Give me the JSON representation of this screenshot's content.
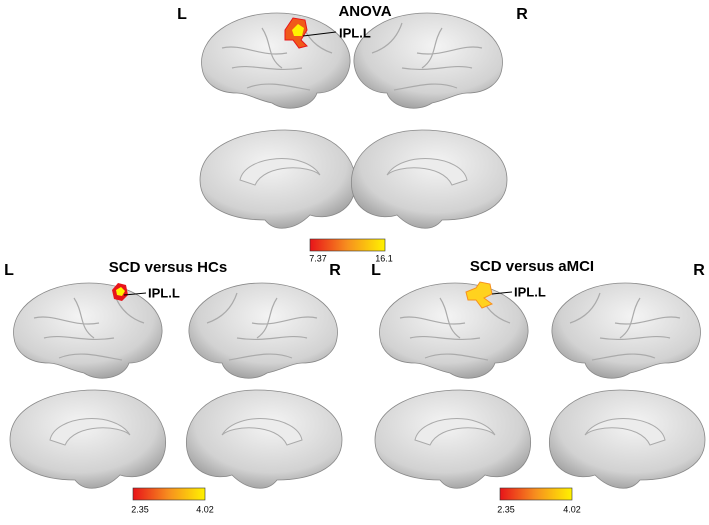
{
  "panels": [
    {
      "title": "ANOVA",
      "left": "L",
      "right": "R",
      "region": "IPL.L",
      "colorbar_min": "7.37",
      "colorbar_max": "16.1"
    },
    {
      "title": "SCD versus HCs",
      "left": "L",
      "right": "R",
      "region": "IPL.L",
      "colorbar_min": "2.35",
      "colorbar_max": "4.02"
    },
    {
      "title": "SCD versus aMCI",
      "left": "L",
      "right": "R",
      "region": "IPL.L",
      "colorbar_min": "2.35",
      "colorbar_max": "4.02"
    }
  ]
}
